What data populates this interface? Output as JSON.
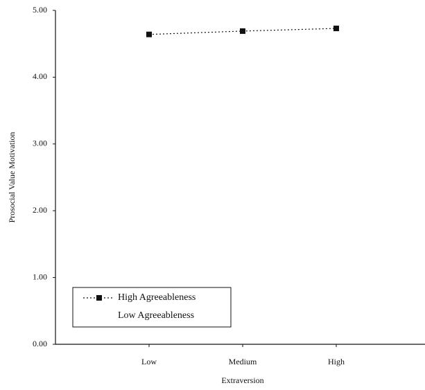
{
  "chart_data": {
    "type": "line",
    "xlabel": "Extraversion",
    "ylabel": "Prosocial Value Motivation",
    "categories": [
      "Low",
      "Medium",
      "High"
    ],
    "series": [
      {
        "name": "High Agreeableness",
        "color": "#111111",
        "values": [
          4.64,
          4.69,
          4.73
        ]
      },
      {
        "name": "Low Agreeableness",
        "values": [
          null,
          null,
          null
        ]
      }
    ],
    "ylim": [
      0,
      5
    ],
    "yticks": [
      {
        "value": 0,
        "label": "0.00"
      },
      {
        "value": 1,
        "label": "1.00"
      },
      {
        "value": 2,
        "label": "2.00"
      },
      {
        "value": 3,
        "label": "3.00"
      },
      {
        "value": 4,
        "label": "4.00"
      },
      {
        "value": 5,
        "label": "5.00"
      }
    ],
    "grid": false,
    "legend": "lower left"
  }
}
